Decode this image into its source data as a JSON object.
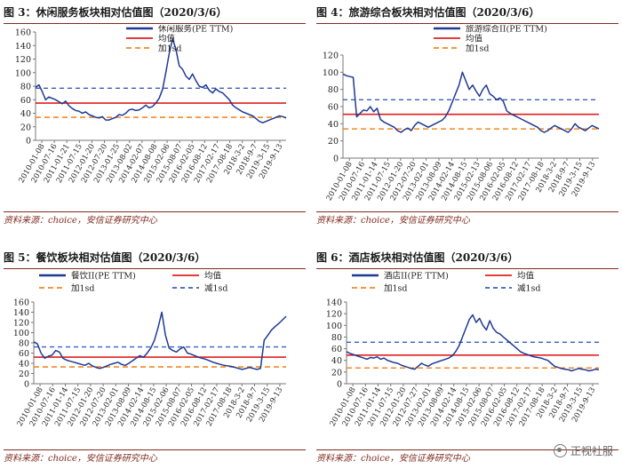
{
  "source_text": "资料来源：choice，安信证券研究中心",
  "watermark": "正视社服",
  "colors": {
    "series": "#1f3a93",
    "mean": "#e02020",
    "plus1sd": "#f08a24",
    "minus1sd": "#3b5fc0",
    "rule": "#7f2b1f"
  },
  "chart_data": [
    {
      "id": "p3",
      "type": "line",
      "title": "图 3：休闲服务板块相对估值图（2020/3/6）",
      "ylim": [
        0,
        160
      ],
      "yticks": [
        0,
        20,
        40,
        60,
        80,
        100,
        120,
        140,
        160
      ],
      "xlabels": [
        "2010-01-08",
        "2010-07-16",
        "2011-01-21",
        "2011-07-15",
        "2012-01-20",
        "2012-07-20",
        "2013-01-25",
        "2013-08-02",
        "2014-02-07",
        "2014-08-08",
        "2015-02-06",
        "2015-08-07",
        "2016-02-05",
        "2016-08-12",
        "2017-02-17",
        "2017-08-18",
        "2018-3-2",
        "2018-9-7",
        "2019-3-15",
        "2019-9-13"
      ],
      "legend": [
        "休闲服务(PE TTM)",
        "均值",
        "加1sd"
      ],
      "mean": 55,
      "plus1sd": 77,
      "minus1sd": 34,
      "values": [
        78,
        82,
        72,
        60,
        64,
        62,
        60,
        57,
        54,
        58,
        51,
        47,
        44,
        43,
        40,
        42,
        38,
        36,
        34,
        33,
        35,
        30,
        30,
        32,
        34,
        38,
        37,
        40,
        45,
        46,
        44,
        45,
        48,
        52,
        48,
        50,
        55,
        62,
        75,
        100,
        128,
        150,
        135,
        110,
        105,
        95,
        90,
        98,
        88,
        80,
        78,
        82,
        74,
        70,
        76,
        72,
        70,
        65,
        60,
        52,
        48,
        45,
        42,
        40,
        38,
        36,
        32,
        28,
        26,
        28,
        30,
        32,
        34,
        36,
        35,
        33
      ]
    },
    {
      "id": "p4",
      "type": "line",
      "title": "图 4：旅游综合板块相对估值图（2020/3/6）",
      "ylim": [
        0,
        120
      ],
      "yticks": [
        0,
        20,
        40,
        60,
        80,
        100,
        120
      ],
      "xlabels": [
        "2010-01-08",
        "2010-07-16",
        "2011-01-14",
        "2011-07-15",
        "2012-01-20",
        "2012-07-20",
        "2013-02-01",
        "2013-08-09",
        "2014-02-14",
        "2014-08-15",
        "2015-02-13",
        "2015-08-06",
        "2016-02-05",
        "2016-08-12",
        "2017-02-17",
        "2017-08-18",
        "2018-3-2",
        "2018-9-7",
        "2019-3-15",
        "2019-9-13"
      ],
      "legend": [
        "旅游综合II(PE TTM)",
        "均值",
        "加1sd"
      ],
      "mean": 51,
      "plus1sd": 68,
      "minus1sd": 34,
      "values": [
        98,
        96,
        95,
        94,
        48,
        52,
        56,
        55,
        60,
        54,
        58,
        45,
        42,
        40,
        38,
        36,
        32,
        30,
        33,
        35,
        32,
        38,
        42,
        40,
        38,
        36,
        38,
        40,
        42,
        44,
        48,
        55,
        65,
        75,
        85,
        100,
        90,
        80,
        85,
        78,
        72,
        80,
        85,
        75,
        72,
        68,
        70,
        66,
        55,
        52,
        50,
        48,
        46,
        44,
        42,
        40,
        38,
        36,
        32,
        30,
        32,
        35,
        38,
        36,
        34,
        32,
        30,
        34,
        40,
        36,
        34,
        32,
        35,
        38,
        36,
        34
      ]
    },
    {
      "id": "p5",
      "type": "line",
      "title": "图 5：餐饮板块相对估值图（2020/3/6）",
      "ylim": [
        0,
        160
      ],
      "yticks": [
        0,
        20,
        40,
        60,
        80,
        100,
        120,
        140,
        160
      ],
      "xlabels": [
        "2010-01-08",
        "2010-07-16",
        "2011-01-14",
        "2011-07-15",
        "2012-01-20",
        "2012-07-20",
        "2013-02-01",
        "2013-08-09",
        "2014-02-14",
        "2014-08-15",
        "2015-02-06",
        "2015-08-07",
        "2016-02-05",
        "2016-08-12",
        "2017-02-17",
        "2017-08-18",
        "2018-3-2",
        "2018-9-7",
        "2019-3-15",
        "2019-9-13"
      ],
      "legend": [
        "餐饮II(PE TTM)",
        "均值",
        "加1sd",
        "减1sd"
      ],
      "mean": 52,
      "plus1sd": 72,
      "minus1sd": 33,
      "values": [
        82,
        78,
        60,
        50,
        54,
        56,
        65,
        62,
        50,
        46,
        44,
        42,
        40,
        38,
        36,
        40,
        35,
        32,
        30,
        32,
        35,
        38,
        40,
        42,
        38,
        36,
        40,
        45,
        50,
        55,
        52,
        60,
        70,
        85,
        110,
        140,
        95,
        70,
        65,
        62,
        68,
        72,
        60,
        58,
        55,
        52,
        50,
        48,
        45,
        42,
        40,
        38,
        36,
        35,
        34,
        32,
        30,
        28,
        30,
        32,
        30,
        28,
        30,
        85,
        95,
        105,
        112,
        118,
        125,
        132
      ]
    },
    {
      "id": "p6",
      "type": "line",
      "title": "图 6：酒店板块相对估值图（2020/3/6）",
      "ylim": [
        0,
        140
      ],
      "yticks": [
        0,
        20,
        40,
        60,
        80,
        100,
        120,
        140
      ],
      "xlabels": [
        "2010-01-08",
        "2010-07-16",
        "2011-01-14",
        "2011-07-15",
        "2012-01-20",
        "2012-07-27",
        "2013-02-01",
        "2013-08-09",
        "2014-02-14",
        "2014-08-15",
        "2015-02-06",
        "2015-08-07",
        "2016-02-05",
        "2016-08-12",
        "2017-02-17",
        "2017-08-18",
        "2018-3-2",
        "2018-9-7",
        "2019-3-15",
        "2019-9-13"
      ],
      "legend": [
        "酒店II(PE TTM)",
        "均值",
        "加1sd",
        "减1sd"
      ],
      "mean": 49,
      "plus1sd": 71,
      "minus1sd": 27,
      "values": [
        55,
        52,
        50,
        48,
        46,
        44,
        42,
        45,
        44,
        46,
        42,
        44,
        40,
        38,
        36,
        35,
        32,
        30,
        28,
        26,
        25,
        30,
        35,
        32,
        30,
        34,
        36,
        38,
        40,
        42,
        44,
        48,
        55,
        65,
        80,
        95,
        110,
        118,
        105,
        112,
        100,
        92,
        108,
        95,
        88,
        85,
        80,
        75,
        70,
        65,
        60,
        55,
        52,
        50,
        48,
        46,
        45,
        44,
        42,
        40,
        35,
        30,
        28,
        26,
        25,
        24,
        22,
        24,
        26,
        25,
        24,
        22,
        23,
        25,
        24
      ]
    }
  ]
}
